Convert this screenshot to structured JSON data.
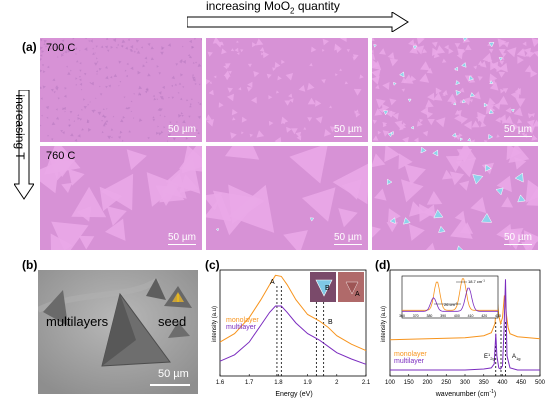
{
  "labels": {
    "a": "(a)",
    "b": "(b)",
    "c": "(c)",
    "d": "(d)",
    "moo2_prefix": "increasing MoO",
    "moo2_sub": "2",
    "moo2_suffix": " quantity",
    "increasing_t": "increasing T",
    "temp_700": "700 C",
    "temp_760": "760 C",
    "scale_50": "50 µm",
    "multilayers": "multilayers",
    "seed": "seed"
  },
  "colors": {
    "substrate": "#d98ed8",
    "film": "#e6a8e4",
    "sem_bg": "#9b9b9b",
    "monolayer": "#f7941d",
    "multilayer": "#7b2cbf",
    "crystal_blue": "#7fc8e6"
  },
  "chart_data": [
    {
      "panel": "c",
      "type": "line",
      "xlabel": "Energy (eV)",
      "ylabel": "intensity (a.u)",
      "xlim": [
        1.6,
        2.1
      ],
      "xticks": [
        "1.6",
        "1.7",
        "1.8",
        "1.9",
        "2",
        "2.1"
      ],
      "series": [
        {
          "name": "monolayer",
          "x": [
            1.6,
            1.65,
            1.7,
            1.74,
            1.77,
            1.79,
            1.81,
            1.83,
            1.86,
            1.9,
            1.94,
            1.97,
            2.0,
            2.05,
            2.1
          ],
          "y": [
            0.32,
            0.4,
            0.55,
            0.72,
            0.86,
            0.95,
            0.94,
            0.86,
            0.72,
            0.58,
            0.52,
            0.46,
            0.38,
            0.3,
            0.24
          ]
        },
        {
          "name": "multilayer",
          "x": [
            1.6,
            1.65,
            1.7,
            1.74,
            1.77,
            1.79,
            1.81,
            1.83,
            1.86,
            1.9,
            1.94,
            1.97,
            2.0,
            2.05,
            2.1
          ],
          "y": [
            0.14,
            0.2,
            0.32,
            0.48,
            0.6,
            0.66,
            0.66,
            0.6,
            0.5,
            0.4,
            0.34,
            0.28,
            0.22,
            0.16,
            0.11
          ]
        }
      ],
      "annotations": [
        "A",
        "B"
      ],
      "dashed_x": [
        1.795,
        1.81,
        1.93,
        1.955
      ]
    },
    {
      "panel": "d",
      "type": "line",
      "xlabel": "wavenumber (cm",
      "xlabel_sup": "-1",
      "xlabel_end": ")",
      "ylabel": "intensity (a.u)",
      "xlim": [
        100,
        500
      ],
      "xticks": [
        "100",
        "150",
        "200",
        "250",
        "300",
        "350",
        "400",
        "450",
        "500"
      ],
      "series": [
        {
          "name": "monolayer",
          "x": [
            100,
            200,
            300,
            350,
            370,
            380,
            385,
            390,
            395,
            400,
            405,
            410,
            415,
            420,
            440,
            470,
            500
          ],
          "y": [
            0.36,
            0.37,
            0.38,
            0.4,
            0.43,
            0.52,
            0.78,
            0.6,
            0.52,
            0.58,
            0.8,
            0.62,
            0.48,
            0.42,
            0.39,
            0.38,
            0.37
          ]
        },
        {
          "name": "multilayer",
          "x": [
            100,
            200,
            300,
            350,
            370,
            378,
            382,
            385,
            390,
            395,
            400,
            404,
            408,
            412,
            420,
            440,
            470,
            500
          ],
          "y": [
            0.06,
            0.06,
            0.06,
            0.07,
            0.08,
            0.12,
            0.42,
            0.2,
            0.08,
            0.07,
            0.1,
            0.45,
            0.96,
            0.2,
            0.08,
            0.06,
            0.06,
            0.06
          ]
        }
      ],
      "peak_labels": [
        "E",
        "A"
      ],
      "peak_label_sub_e": "2g",
      "peak_label_sup_e": "1",
      "peak_label_sub_a": "1g",
      "dashed_x": [
        382,
        396,
        408
      ],
      "inset": {
        "xlim": [
          360,
          430
        ],
        "xticks": [
          "360",
          "370",
          "380",
          "390",
          "400",
          "410",
          "420",
          "430"
        ],
        "annotations": [
          "18.7 cm",
          "26 cm"
        ],
        "annotation_sup": "-1"
      }
    }
  ]
}
